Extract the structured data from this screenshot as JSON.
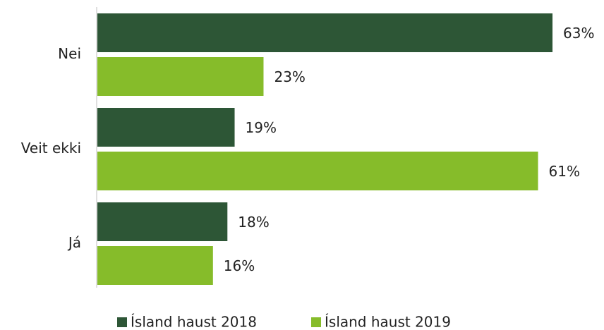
{
  "chart_data": {
    "type": "hbar",
    "categories": [
      "Nei",
      "Veit ekki",
      "Já"
    ],
    "series": [
      {
        "name": "Ísland haust 2018",
        "color": "#2d5636",
        "values": [
          63,
          19,
          18
        ],
        "value_labels": [
          "63%",
          "19%",
          "18%"
        ]
      },
      {
        "name": "Ísland haust 2019",
        "color": "#86bc2a",
        "values": [
          23,
          61,
          16
        ],
        "value_labels": [
          "23%",
          "61%",
          "16%"
        ]
      }
    ],
    "legend": "bottom"
  }
}
